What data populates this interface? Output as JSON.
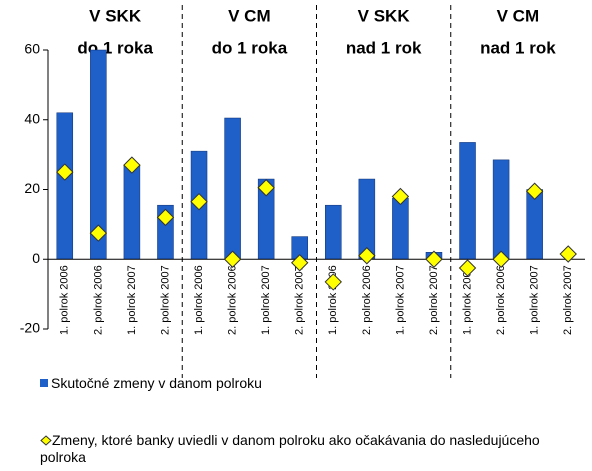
{
  "chart_data": {
    "type": "bar",
    "groups": [
      [
        "V SKK",
        "do 1 roka"
      ],
      [
        "V CM",
        "do 1 roka"
      ],
      [
        "V SKK",
        "nad 1 rok"
      ],
      [
        "V CM",
        "nad 1 rok"
      ]
    ],
    "categories": [
      "1. polrok 2006",
      "2. polrok 2006",
      "1. polrok 2007",
      "2. polrok 2007",
      "1. polrok 2006",
      "2. polrok 2006",
      "1. polrok 2007",
      "2. polrok 2007",
      "1. polrok 2006",
      "2. polrok 2006",
      "1. polrok 2007",
      "2. polrok 2007",
      "1. polrok 2006",
      "2. polrok 2006",
      "1. polrok 2007",
      "2. polrok 2007"
    ],
    "series": [
      {
        "name": "Skutočné zmeny v danom polroku",
        "color": "#1f5fc8",
        "values": [
          42,
          60,
          27,
          15.5,
          31,
          40.5,
          23,
          6.5,
          15.5,
          23,
          17.5,
          2,
          33.5,
          28.5,
          20,
          0
        ]
      },
      {
        "name": "Zmeny, ktoré banky uviedli v danom polroku ako očakávania do nasledujúceho polroka",
        "color": "#ffff00",
        "marker": "diamond",
        "values": [
          25,
          7.5,
          27,
          12,
          16.5,
          0,
          20.5,
          -1,
          -6.5,
          1,
          18,
          0,
          -2.5,
          0,
          19.5,
          1.5
        ]
      }
    ],
    "ylim": [
      -20,
      60
    ],
    "yticks": [
      -20,
      0,
      20,
      40,
      60
    ]
  }
}
